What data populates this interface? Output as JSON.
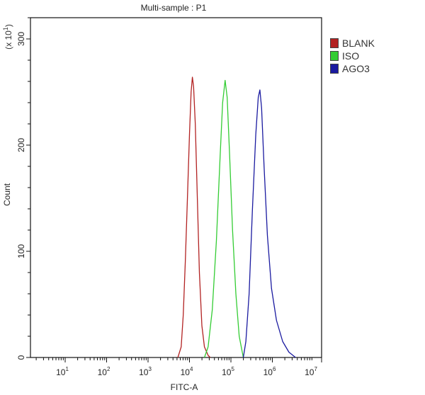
{
  "chart_data": {
    "type": "line",
    "title": "Multi-sample : P1",
    "xlabel": "FITC-A",
    "ylabel": "Count",
    "y_multiplier_label": "(x 10^1)",
    "x_scale": "log",
    "x_ticks": [
      "10^1",
      "10^2",
      "10^3",
      "10^4",
      "10^5",
      "10^6",
      "10^7"
    ],
    "y_ticks": [
      0,
      100,
      200,
      300
    ],
    "ylim": [
      0,
      330
    ],
    "xlim_log10": [
      0.17,
      7
    ],
    "grid": false,
    "legend_position": "right",
    "series": [
      {
        "name": "BLANK",
        "color": "#b22222",
        "peak_log10_x": 4.07,
        "peak_count": 264,
        "points_log10": [
          [
            3.72,
            0
          ],
          [
            3.8,
            10
          ],
          [
            3.85,
            40
          ],
          [
            3.9,
            90
          ],
          [
            3.95,
            150
          ],
          [
            4.0,
            210
          ],
          [
            4.04,
            250
          ],
          [
            4.07,
            264
          ],
          [
            4.1,
            255
          ],
          [
            4.14,
            220
          ],
          [
            4.19,
            150
          ],
          [
            4.24,
            80
          ],
          [
            4.3,
            30
          ],
          [
            4.36,
            10
          ],
          [
            4.45,
            2
          ],
          [
            4.5,
            0
          ]
        ]
      },
      {
        "name": "ISO",
        "color": "#33cc33",
        "peak_log10_x": 4.86,
        "peak_count": 261,
        "points_log10": [
          [
            4.36,
            0
          ],
          [
            4.45,
            10
          ],
          [
            4.55,
            45
          ],
          [
            4.65,
            110
          ],
          [
            4.74,
            190
          ],
          [
            4.8,
            240
          ],
          [
            4.86,
            261
          ],
          [
            4.91,
            245
          ],
          [
            4.97,
            190
          ],
          [
            5.04,
            120
          ],
          [
            5.12,
            60
          ],
          [
            5.2,
            20
          ],
          [
            5.3,
            0
          ]
        ]
      },
      {
        "name": "AGO3",
        "color": "#1a1aa0",
        "peak_log10_x": 5.7,
        "peak_count": 252,
        "points_log10": [
          [
            5.3,
            0
          ],
          [
            5.36,
            15
          ],
          [
            5.44,
            60
          ],
          [
            5.52,
            140
          ],
          [
            5.6,
            210
          ],
          [
            5.66,
            245
          ],
          [
            5.7,
            252
          ],
          [
            5.74,
            235
          ],
          [
            5.8,
            180
          ],
          [
            5.88,
            115
          ],
          [
            5.98,
            65
          ],
          [
            6.1,
            35
          ],
          [
            6.25,
            15
          ],
          [
            6.4,
            5
          ],
          [
            6.56,
            0
          ]
        ]
      }
    ]
  },
  "legend": [
    {
      "label": "BLANK",
      "color": "#b22222"
    },
    {
      "label": "ISO",
      "color": "#33cc33"
    },
    {
      "label": "AGO3",
      "color": "#1a1aa0"
    }
  ],
  "title": "Multi-sample : P1"
}
